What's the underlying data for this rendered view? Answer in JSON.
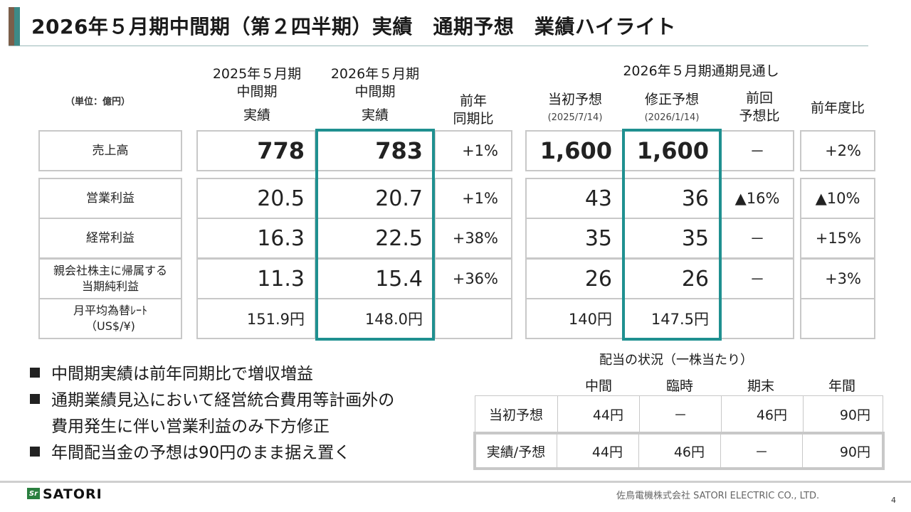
{
  "title": "2026年５月期中間期（第２四半期）実績　通期予想　業績ハイライト",
  "unit_label": "（単位：億円）",
  "columns": {
    "prev_half": [
      "2025年５月期",
      "中間期",
      "実績"
    ],
    "cur_half": [
      "2026年５月期",
      "中間期",
      "実績"
    ],
    "yoy": [
      "前年",
      "同期比"
    ],
    "full_year_header": "2026年５月期通期見通し",
    "initial": "当初予想",
    "initial_date": "(2025/7/14)",
    "revised": "修正予想",
    "revised_date": "(2026/1/14)",
    "vs_prev": [
      "前回",
      "予想比"
    ],
    "vs_last_year": "前年度比"
  },
  "rows": [
    {
      "label": [
        "売上高"
      ],
      "prev": "778",
      "cur": "783",
      "yoy": "+1%",
      "initial": "1,600",
      "revised": "1,600",
      "vs_prev": "－",
      "vs_ly": "+2%"
    },
    {
      "label": [
        "営業利益"
      ],
      "prev": "20.5",
      "cur": "20.7",
      "yoy": "+1%",
      "initial": "43",
      "revised": "36",
      "vs_prev": "▲16%",
      "vs_ly": "▲10%"
    },
    {
      "label": [
        "経常利益"
      ],
      "prev": "16.3",
      "cur": "22.5",
      "yoy": "+38%",
      "initial": "35",
      "revised": "35",
      "vs_prev": "－",
      "vs_ly": "+15%"
    },
    {
      "label": [
        "親会社株主に帰属する",
        "当期純利益"
      ],
      "prev": "11.3",
      "cur": "15.4",
      "yoy": "+36%",
      "initial": "26",
      "revised": "26",
      "vs_prev": "－",
      "vs_ly": "+3%"
    },
    {
      "label": [
        "月平均為替ﾚｰﾄ",
        "（US$/¥)"
      ],
      "prev": "151.9円",
      "cur": "148.0円",
      "yoy": "",
      "initial": "140円",
      "revised": "147.5円",
      "vs_prev": "",
      "vs_ly": ""
    }
  ],
  "bullets": [
    "中間期実績は前年同期比で増収増益",
    "通期業績見込において経営統合費用等計画外の",
    "費用発生に伴い営業利益のみ下方修正",
    "年間配当金の予想は90円のまま据え置く"
  ],
  "dividend": {
    "title": "配当の状況（一株当たり）",
    "headers": [
      "中間",
      "臨時",
      "期末",
      "年間"
    ],
    "rows": [
      {
        "label": "当初予想",
        "values": [
          "44円",
          "－",
          "46円",
          "90円"
        ]
      },
      {
        "label": "実績/予想",
        "values": [
          "44円",
          "46円",
          "－",
          "90円"
        ]
      }
    ]
  },
  "footer": {
    "logo_mark": "Sr",
    "logo_text": "SATORI",
    "company": "佐鳥電機株式会社  SATORI ELECTRIC CO., LTD.",
    "page": "4"
  },
  "colors": {
    "accent_teal": "#1f9090",
    "accent_brown": "#7b5e4a"
  }
}
